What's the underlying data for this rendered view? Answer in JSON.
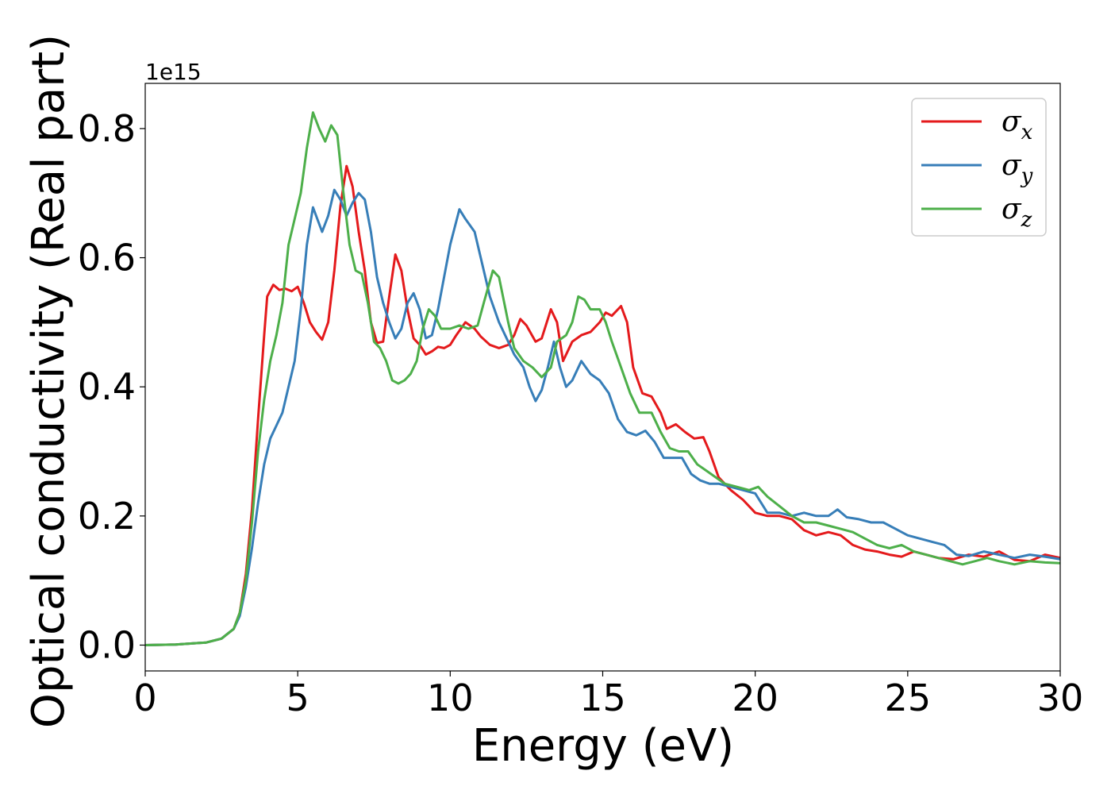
{
  "chart_data": {
    "type": "line",
    "xlabel": "Energy (eV)",
    "ylabel": "Optical conductivity (Real part)",
    "y_offset_label": "1e15",
    "xlim": [
      0,
      30
    ],
    "ylim": [
      -0.04,
      0.87
    ],
    "x_ticks": [
      0,
      5,
      10,
      15,
      20,
      25,
      30
    ],
    "x_tick_labels": [
      "0",
      "5",
      "10",
      "15",
      "20",
      "25",
      "30"
    ],
    "y_ticks": [
      0.0,
      0.2,
      0.4,
      0.6,
      0.8
    ],
    "y_tick_labels": [
      "0.0",
      "0.2",
      "0.4",
      "0.6",
      "0.8"
    ],
    "grid": false,
    "legend_position": "top-right",
    "series": [
      {
        "name": "σx",
        "legend_base": "σ",
        "legend_sub": "x",
        "color": "#e41a1c",
        "points": [
          [
            0,
            0.0
          ],
          [
            1,
            0.001
          ],
          [
            2,
            0.004
          ],
          [
            2.5,
            0.01
          ],
          [
            2.9,
            0.025
          ],
          [
            3.1,
            0.05
          ],
          [
            3.3,
            0.11
          ],
          [
            3.5,
            0.21
          ],
          [
            3.7,
            0.35
          ],
          [
            3.9,
            0.48
          ],
          [
            4.0,
            0.54
          ],
          [
            4.2,
            0.558
          ],
          [
            4.4,
            0.55
          ],
          [
            4.6,
            0.552
          ],
          [
            4.8,
            0.548
          ],
          [
            5.0,
            0.555
          ],
          [
            5.2,
            0.53
          ],
          [
            5.4,
            0.5
          ],
          [
            5.6,
            0.485
          ],
          [
            5.8,
            0.473
          ],
          [
            6.0,
            0.5
          ],
          [
            6.2,
            0.58
          ],
          [
            6.4,
            0.68
          ],
          [
            6.6,
            0.742
          ],
          [
            6.8,
            0.71
          ],
          [
            7.0,
            0.64
          ],
          [
            7.2,
            0.58
          ],
          [
            7.4,
            0.5
          ],
          [
            7.6,
            0.468
          ],
          [
            7.8,
            0.47
          ],
          [
            8.0,
            0.54
          ],
          [
            8.2,
            0.605
          ],
          [
            8.4,
            0.58
          ],
          [
            8.6,
            0.52
          ],
          [
            8.8,
            0.475
          ],
          [
            9.0,
            0.465
          ],
          [
            9.2,
            0.45
          ],
          [
            9.4,
            0.455
          ],
          [
            9.6,
            0.462
          ],
          [
            9.8,
            0.46
          ],
          [
            10.0,
            0.465
          ],
          [
            10.2,
            0.48
          ],
          [
            10.5,
            0.5
          ],
          [
            10.8,
            0.49
          ],
          [
            11.0,
            0.478
          ],
          [
            11.3,
            0.465
          ],
          [
            11.6,
            0.46
          ],
          [
            11.9,
            0.465
          ],
          [
            12.1,
            0.48
          ],
          [
            12.3,
            0.505
          ],
          [
            12.5,
            0.495
          ],
          [
            12.8,
            0.47
          ],
          [
            13.0,
            0.475
          ],
          [
            13.3,
            0.52
          ],
          [
            13.5,
            0.5
          ],
          [
            13.7,
            0.44
          ],
          [
            14.0,
            0.47
          ],
          [
            14.3,
            0.48
          ],
          [
            14.6,
            0.485
          ],
          [
            14.9,
            0.5
          ],
          [
            15.1,
            0.515
          ],
          [
            15.3,
            0.51
          ],
          [
            15.6,
            0.525
          ],
          [
            15.8,
            0.5
          ],
          [
            16.0,
            0.43
          ],
          [
            16.3,
            0.39
          ],
          [
            16.6,
            0.385
          ],
          [
            16.9,
            0.36
          ],
          [
            17.1,
            0.335
          ],
          [
            17.4,
            0.342
          ],
          [
            17.7,
            0.33
          ],
          [
            18.0,
            0.32
          ],
          [
            18.3,
            0.322
          ],
          [
            18.5,
            0.3
          ],
          [
            18.8,
            0.26
          ],
          [
            19.2,
            0.24
          ],
          [
            19.6,
            0.225
          ],
          [
            20.0,
            0.205
          ],
          [
            20.4,
            0.2
          ],
          [
            20.8,
            0.2
          ],
          [
            21.2,
            0.195
          ],
          [
            21.6,
            0.178
          ],
          [
            22.0,
            0.17
          ],
          [
            22.4,
            0.175
          ],
          [
            22.8,
            0.17
          ],
          [
            23.2,
            0.155
          ],
          [
            23.6,
            0.148
          ],
          [
            24.0,
            0.145
          ],
          [
            24.4,
            0.14
          ],
          [
            24.8,
            0.137
          ],
          [
            25.2,
            0.145
          ],
          [
            25.6,
            0.14
          ],
          [
            26.0,
            0.135
          ],
          [
            26.5,
            0.133
          ],
          [
            27.0,
            0.14
          ],
          [
            27.5,
            0.137
          ],
          [
            28.0,
            0.145
          ],
          [
            28.5,
            0.132
          ],
          [
            29.0,
            0.13
          ],
          [
            29.5,
            0.14
          ],
          [
            30.0,
            0.135
          ]
        ]
      },
      {
        "name": "σy",
        "legend_base": "σ",
        "legend_sub": "y",
        "color": "#377eb8",
        "points": [
          [
            0,
            0.0
          ],
          [
            1,
            0.001
          ],
          [
            2,
            0.004
          ],
          [
            2.5,
            0.01
          ],
          [
            2.9,
            0.025
          ],
          [
            3.1,
            0.045
          ],
          [
            3.3,
            0.09
          ],
          [
            3.5,
            0.15
          ],
          [
            3.7,
            0.22
          ],
          [
            3.9,
            0.28
          ],
          [
            4.1,
            0.32
          ],
          [
            4.3,
            0.34
          ],
          [
            4.5,
            0.36
          ],
          [
            4.7,
            0.4
          ],
          [
            4.9,
            0.44
          ],
          [
            5.1,
            0.52
          ],
          [
            5.3,
            0.62
          ],
          [
            5.5,
            0.678
          ],
          [
            5.8,
            0.64
          ],
          [
            6.0,
            0.665
          ],
          [
            6.2,
            0.705
          ],
          [
            6.4,
            0.69
          ],
          [
            6.6,
            0.665
          ],
          [
            6.8,
            0.685
          ],
          [
            7.0,
            0.7
          ],
          [
            7.2,
            0.69
          ],
          [
            7.4,
            0.64
          ],
          [
            7.6,
            0.57
          ],
          [
            7.8,
            0.53
          ],
          [
            8.0,
            0.5
          ],
          [
            8.2,
            0.475
          ],
          [
            8.4,
            0.49
          ],
          [
            8.6,
            0.53
          ],
          [
            8.8,
            0.545
          ],
          [
            9.0,
            0.52
          ],
          [
            9.2,
            0.475
          ],
          [
            9.4,
            0.48
          ],
          [
            9.6,
            0.52
          ],
          [
            9.8,
            0.57
          ],
          [
            10.0,
            0.62
          ],
          [
            10.3,
            0.675
          ],
          [
            10.5,
            0.66
          ],
          [
            10.8,
            0.64
          ],
          [
            11.0,
            0.6
          ],
          [
            11.3,
            0.54
          ],
          [
            11.6,
            0.5
          ],
          [
            11.9,
            0.47
          ],
          [
            12.1,
            0.45
          ],
          [
            12.4,
            0.43
          ],
          [
            12.6,
            0.4
          ],
          [
            12.8,
            0.378
          ],
          [
            13.0,
            0.395
          ],
          [
            13.2,
            0.43
          ],
          [
            13.4,
            0.47
          ],
          [
            13.6,
            0.43
          ],
          [
            13.8,
            0.4
          ],
          [
            14.0,
            0.41
          ],
          [
            14.3,
            0.44
          ],
          [
            14.6,
            0.42
          ],
          [
            14.9,
            0.41
          ],
          [
            15.2,
            0.39
          ],
          [
            15.5,
            0.35
          ],
          [
            15.8,
            0.33
          ],
          [
            16.1,
            0.325
          ],
          [
            16.4,
            0.332
          ],
          [
            16.7,
            0.315
          ],
          [
            17.0,
            0.29
          ],
          [
            17.3,
            0.29
          ],
          [
            17.6,
            0.29
          ],
          [
            17.9,
            0.265
          ],
          [
            18.2,
            0.255
          ],
          [
            18.5,
            0.25
          ],
          [
            18.8,
            0.25
          ],
          [
            19.2,
            0.245
          ],
          [
            19.6,
            0.24
          ],
          [
            20.0,
            0.235
          ],
          [
            20.4,
            0.205
          ],
          [
            20.8,
            0.205
          ],
          [
            21.2,
            0.2
          ],
          [
            21.6,
            0.205
          ],
          [
            22.0,
            0.2
          ],
          [
            22.4,
            0.2
          ],
          [
            22.7,
            0.21
          ],
          [
            23.0,
            0.198
          ],
          [
            23.4,
            0.195
          ],
          [
            23.8,
            0.19
          ],
          [
            24.2,
            0.19
          ],
          [
            24.6,
            0.18
          ],
          [
            25.0,
            0.17
          ],
          [
            25.4,
            0.165
          ],
          [
            25.8,
            0.16
          ],
          [
            26.2,
            0.155
          ],
          [
            26.6,
            0.14
          ],
          [
            27.0,
            0.138
          ],
          [
            27.5,
            0.145
          ],
          [
            28.0,
            0.14
          ],
          [
            28.5,
            0.135
          ],
          [
            29.0,
            0.14
          ],
          [
            29.5,
            0.137
          ],
          [
            30.0,
            0.133
          ]
        ]
      },
      {
        "name": "σz",
        "legend_base": "σ",
        "legend_sub": "z",
        "color": "#4daf4a",
        "points": [
          [
            0,
            0.0
          ],
          [
            1,
            0.001
          ],
          [
            2,
            0.004
          ],
          [
            2.5,
            0.01
          ],
          [
            2.9,
            0.025
          ],
          [
            3.1,
            0.05
          ],
          [
            3.3,
            0.1
          ],
          [
            3.5,
            0.19
          ],
          [
            3.7,
            0.3
          ],
          [
            3.9,
            0.38
          ],
          [
            4.1,
            0.44
          ],
          [
            4.3,
            0.48
          ],
          [
            4.5,
            0.53
          ],
          [
            4.7,
            0.62
          ],
          [
            4.9,
            0.66
          ],
          [
            5.1,
            0.7
          ],
          [
            5.3,
            0.77
          ],
          [
            5.5,
            0.825
          ],
          [
            5.7,
            0.8
          ],
          [
            5.9,
            0.78
          ],
          [
            6.1,
            0.805
          ],
          [
            6.3,
            0.79
          ],
          [
            6.5,
            0.7
          ],
          [
            6.7,
            0.62
          ],
          [
            6.9,
            0.58
          ],
          [
            7.1,
            0.575
          ],
          [
            7.3,
            0.53
          ],
          [
            7.5,
            0.47
          ],
          [
            7.7,
            0.46
          ],
          [
            7.9,
            0.44
          ],
          [
            8.1,
            0.41
          ],
          [
            8.3,
            0.405
          ],
          [
            8.5,
            0.41
          ],
          [
            8.7,
            0.42
          ],
          [
            8.9,
            0.44
          ],
          [
            9.1,
            0.49
          ],
          [
            9.3,
            0.52
          ],
          [
            9.5,
            0.51
          ],
          [
            9.7,
            0.49
          ],
          [
            10.0,
            0.49
          ],
          [
            10.3,
            0.495
          ],
          [
            10.6,
            0.49
          ],
          [
            10.9,
            0.495
          ],
          [
            11.1,
            0.53
          ],
          [
            11.4,
            0.58
          ],
          [
            11.6,
            0.57
          ],
          [
            11.9,
            0.5
          ],
          [
            12.1,
            0.46
          ],
          [
            12.4,
            0.44
          ],
          [
            12.7,
            0.43
          ],
          [
            13.0,
            0.415
          ],
          [
            13.3,
            0.43
          ],
          [
            13.5,
            0.47
          ],
          [
            13.8,
            0.48
          ],
          [
            14.0,
            0.5
          ],
          [
            14.2,
            0.54
          ],
          [
            14.4,
            0.535
          ],
          [
            14.6,
            0.52
          ],
          [
            14.9,
            0.52
          ],
          [
            15.1,
            0.5
          ],
          [
            15.3,
            0.47
          ],
          [
            15.6,
            0.43
          ],
          [
            15.9,
            0.39
          ],
          [
            16.2,
            0.36
          ],
          [
            16.6,
            0.36
          ],
          [
            16.9,
            0.33
          ],
          [
            17.2,
            0.305
          ],
          [
            17.5,
            0.3
          ],
          [
            17.8,
            0.3
          ],
          [
            18.1,
            0.28
          ],
          [
            18.4,
            0.27
          ],
          [
            18.7,
            0.26
          ],
          [
            19.0,
            0.25
          ],
          [
            19.4,
            0.245
          ],
          [
            19.8,
            0.24
          ],
          [
            20.1,
            0.245
          ],
          [
            20.4,
            0.23
          ],
          [
            20.8,
            0.215
          ],
          [
            21.2,
            0.2
          ],
          [
            21.6,
            0.19
          ],
          [
            22.0,
            0.19
          ],
          [
            22.4,
            0.185
          ],
          [
            22.8,
            0.18
          ],
          [
            23.2,
            0.175
          ],
          [
            23.6,
            0.165
          ],
          [
            24.0,
            0.155
          ],
          [
            24.4,
            0.15
          ],
          [
            24.8,
            0.155
          ],
          [
            25.2,
            0.145
          ],
          [
            25.6,
            0.14
          ],
          [
            26.0,
            0.135
          ],
          [
            26.4,
            0.13
          ],
          [
            26.8,
            0.125
          ],
          [
            27.2,
            0.13
          ],
          [
            27.6,
            0.135
          ],
          [
            28.0,
            0.13
          ],
          [
            28.5,
            0.125
          ],
          [
            29.0,
            0.13
          ],
          [
            29.5,
            0.128
          ],
          [
            30.0,
            0.127
          ]
        ]
      }
    ]
  }
}
